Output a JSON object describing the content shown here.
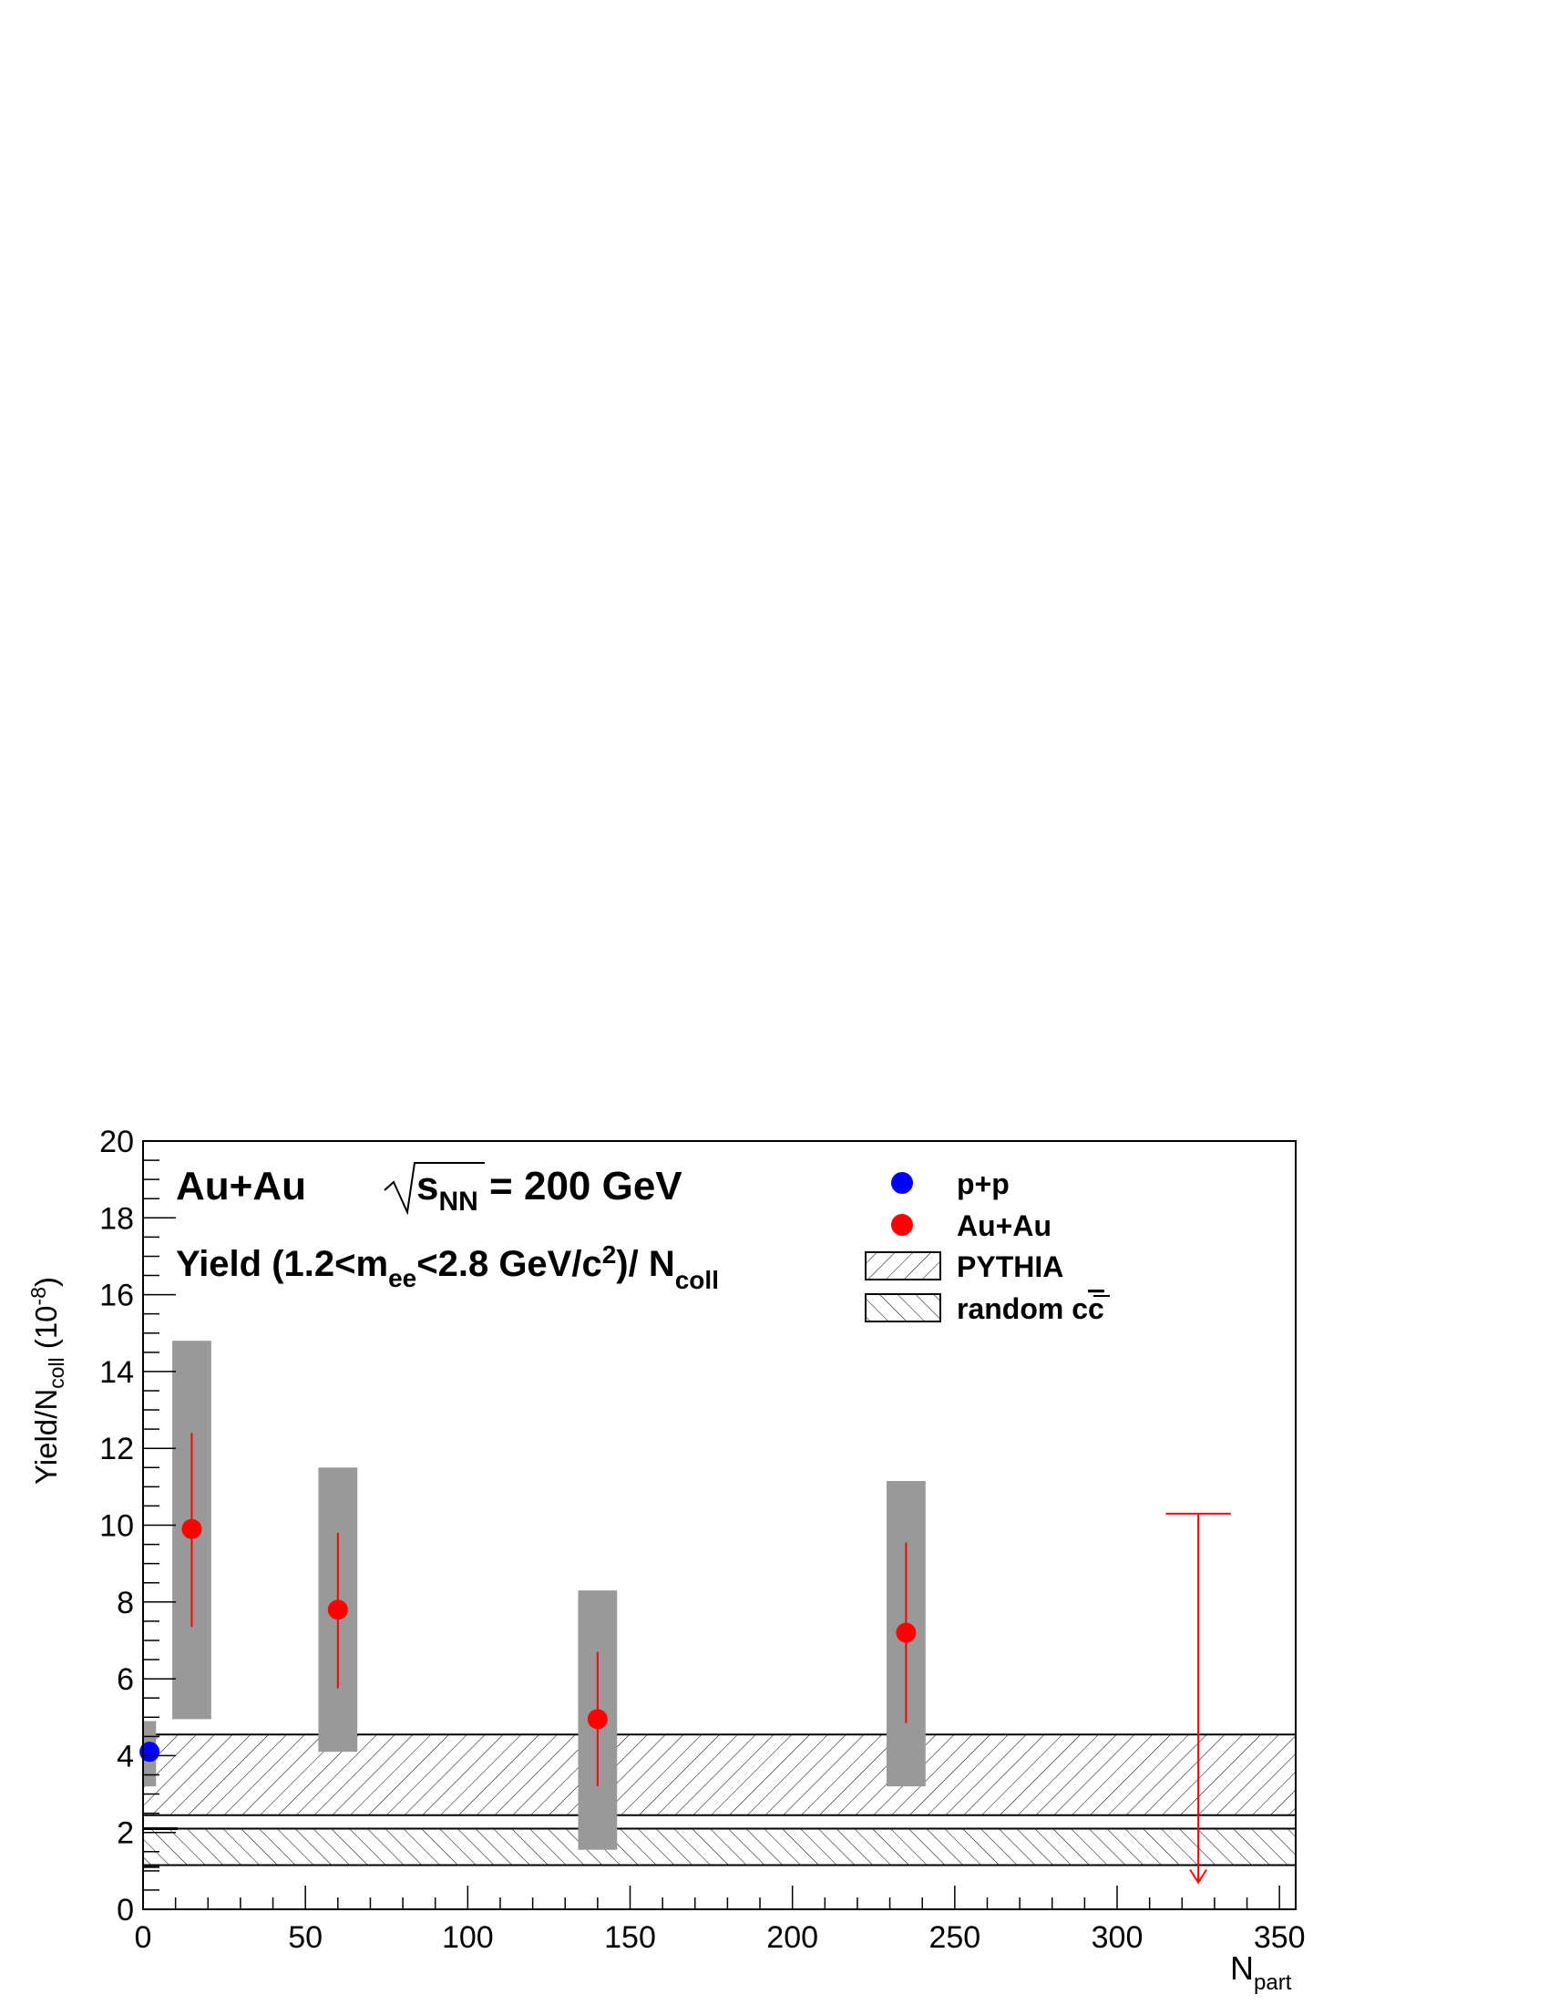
{
  "chart_data": {
    "type": "scatter",
    "xlim": [
      0,
      355
    ],
    "ylim": [
      0,
      20
    ],
    "x_ticks": [
      0,
      50,
      100,
      150,
      200,
      250,
      300,
      350
    ],
    "y_ticks": [
      0,
      2,
      4,
      6,
      8,
      10,
      12,
      14,
      16,
      18,
      20
    ],
    "x_tick_labels": [
      "0",
      "50",
      "100",
      "150",
      "200",
      "250",
      "300",
      "350"
    ],
    "y_tick_labels": [
      "0",
      "2",
      "4",
      "6",
      "8",
      "10",
      "12",
      "14",
      "16",
      "18",
      "20"
    ],
    "xlabel_main": "N",
    "xlabel_sub": "part",
    "ylabel_parts": {
      "a": "Yield/N",
      "sub": "coll",
      "b": " (10",
      "sup": "-8",
      "c": ")"
    },
    "annotations": {
      "system": "Au+Au",
      "energy_s": "s",
      "energy_sub": "NN",
      "energy_value": " = 200 GeV",
      "yield_a": "Yield (1.2<m",
      "yield_sub1": "ee",
      "yield_b": "<2.8 GeV/c",
      "yield_sup": "2",
      "yield_c": ")/ N",
      "yield_sub2": "coll"
    },
    "legend": {
      "position": "top-right",
      "pp": "p+p",
      "auau": "Au+Au",
      "pythia": "PYTHIA",
      "random_a": "random c",
      "random_b": "c"
    },
    "series": [
      {
        "name": "p+p",
        "color": "#0000ff",
        "points": [
          {
            "x": 2,
            "y": 4.1,
            "sys_low": 3.2,
            "sys_high": 4.9,
            "sys_halfwidth": 2
          }
        ]
      },
      {
        "name": "Au+Au",
        "color": "#ff0000",
        "points": [
          {
            "x": 15,
            "y": 9.9,
            "stat_low": 7.35,
            "stat_high": 12.4,
            "sys_low": 4.95,
            "sys_high": 14.8,
            "sys_halfwidth": 6
          },
          {
            "x": 60,
            "y": 7.8,
            "stat_low": 5.75,
            "stat_high": 9.8,
            "sys_low": 4.1,
            "sys_high": 11.5,
            "sys_halfwidth": 6
          },
          {
            "x": 140,
            "y": 4.95,
            "stat_low": 3.2,
            "stat_high": 6.7,
            "sys_low": 1.55,
            "sys_high": 8.3,
            "sys_halfwidth": 6
          },
          {
            "x": 235,
            "y": 7.2,
            "stat_low": 4.85,
            "stat_high": 9.55,
            "sys_low": 3.2,
            "sys_high": 11.15,
            "sys_halfwidth": 6
          }
        ],
        "upper_limit": {
          "x": 325,
          "y": 10.3,
          "arrow_to": 0.7,
          "cap_halfwidth": 10
        }
      }
    ],
    "bands": [
      {
        "name": "PYTHIA",
        "y_low": 2.45,
        "y_high": 4.55,
        "hatch": "forward"
      },
      {
        "name": "random cc",
        "y_low": 1.15,
        "y_high": 2.1,
        "hatch": "backward"
      }
    ],
    "pp_reference_marks": [
      2.1,
      1.1
    ]
  }
}
